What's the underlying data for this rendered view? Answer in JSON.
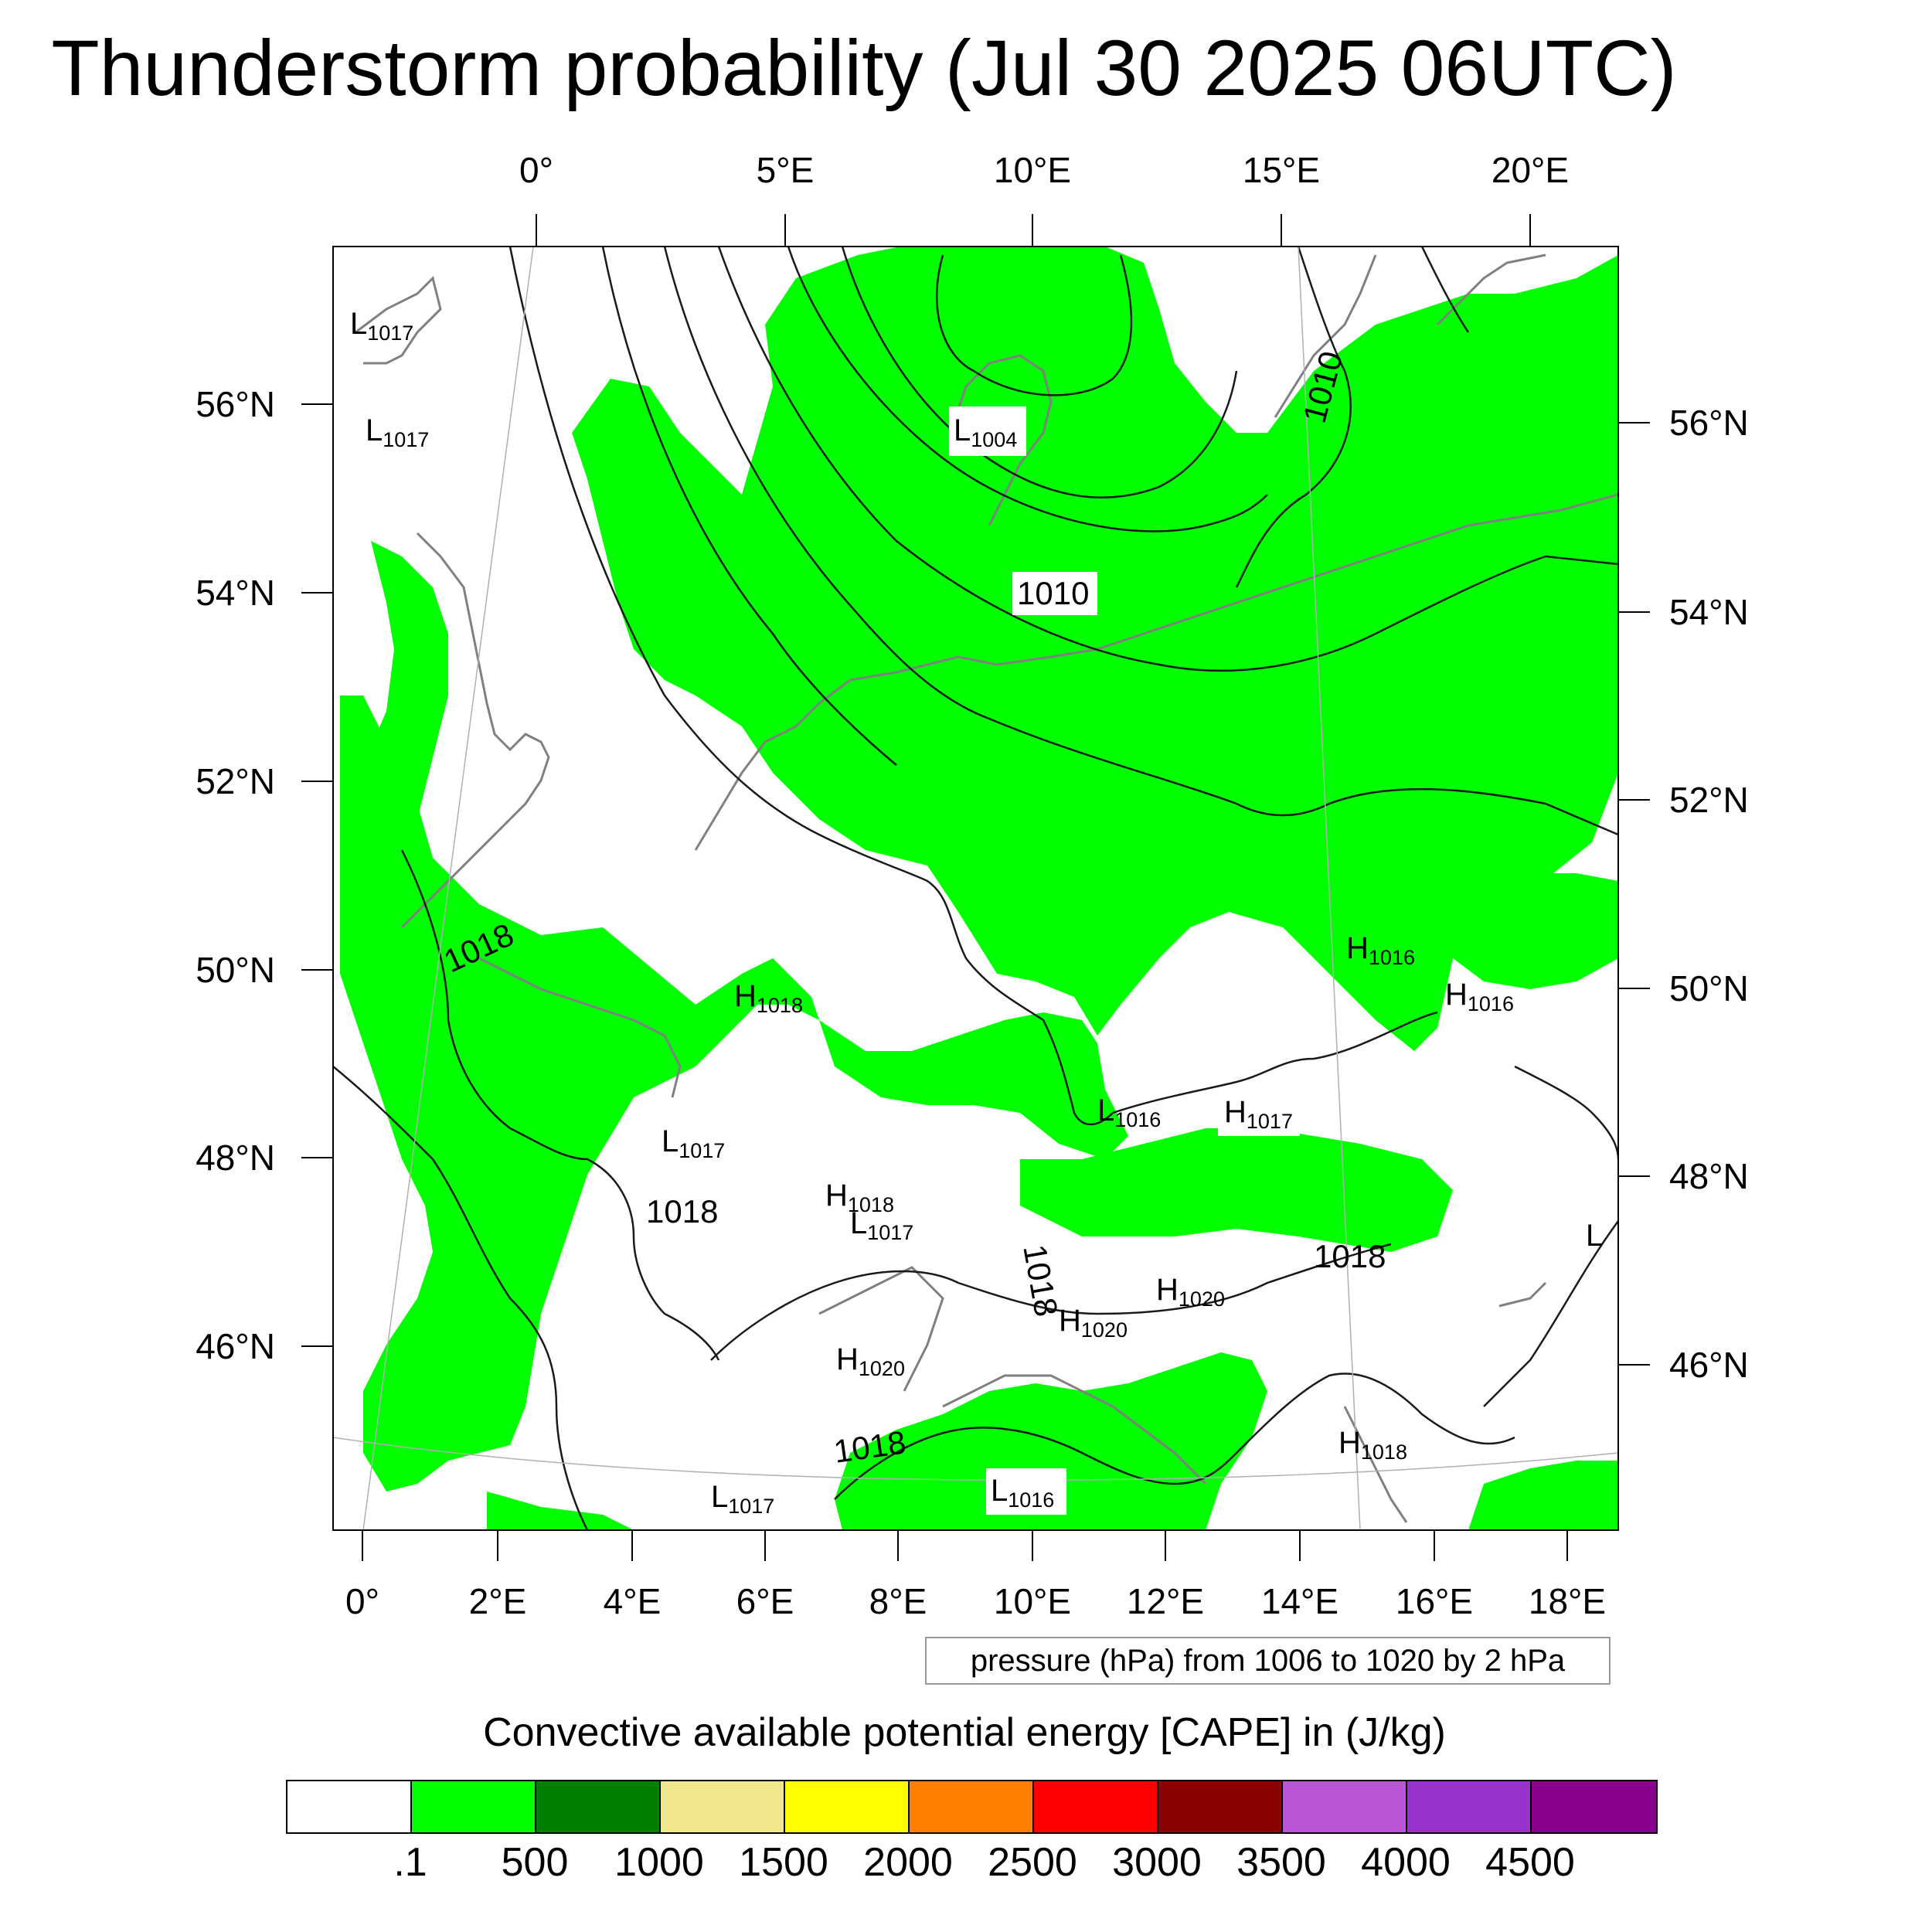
{
  "title": "Thunderstorm probability (Jul 30 2025 06UTC)",
  "top_lon_labels": [
    "0°",
    "5°E",
    "10°E",
    "15°E",
    "20°E"
  ],
  "bottom_lon_labels": [
    "0°",
    "2°E",
    "4°E",
    "6°E",
    "8°E",
    "10°E",
    "12°E",
    "14°E",
    "16°E",
    "18°E"
  ],
  "left_lat_labels": [
    "56°N",
    "54°N",
    "52°N",
    "50°N",
    "48°N",
    "46°N"
  ],
  "right_lat_labels": [
    "56°N",
    "54°N",
    "52°N",
    "50°N",
    "48°N",
    "46°N"
  ],
  "pressure_systems": [
    {
      "type": "L",
      "value": "1017"
    },
    {
      "type": "L",
      "value": "1017"
    },
    {
      "type": "L",
      "value": "1004"
    },
    {
      "type": "H",
      "value": "1018"
    },
    {
      "type": "H",
      "value": "1016"
    },
    {
      "type": "H",
      "value": "1016"
    },
    {
      "type": "L",
      "value": "1016"
    },
    {
      "type": "H",
      "value": "1017"
    },
    {
      "type": "L",
      "value": "1017"
    },
    {
      "type": "H",
      "value": "1018"
    },
    {
      "type": "L",
      "value": "1017"
    },
    {
      "type": "H",
      "value": "1020"
    },
    {
      "type": "H",
      "value": "1020"
    },
    {
      "type": "H",
      "value": "1020"
    },
    {
      "type": "L",
      "value": "1017"
    },
    {
      "type": "L",
      "value": "1016"
    },
    {
      "type": "H",
      "value": "1018"
    },
    {
      "type": "L",
      "value": ""
    }
  ],
  "isobar_labels": [
    "1010",
    "1010",
    "1018",
    "1018",
    "1018",
    "1018",
    "1018"
  ],
  "contour_info": "pressure (hPa) from 1006 to 1020 by 2 hPa",
  "legend": {
    "title": "Convective available potential energy [CAPE] in (J/kg)",
    "colors": [
      "#ffffff",
      "#00ff00",
      "#008000",
      "#f0e68c",
      "#ffff00",
      "#ff8000",
      "#ff0000",
      "#8b0000",
      "#ba55d3",
      "#9932cc",
      "#8b008b"
    ],
    "labels": [
      ".1",
      "500",
      "1000",
      "1500",
      "2000",
      "2500",
      "3000",
      "3500",
      "4000",
      "4500"
    ]
  }
}
